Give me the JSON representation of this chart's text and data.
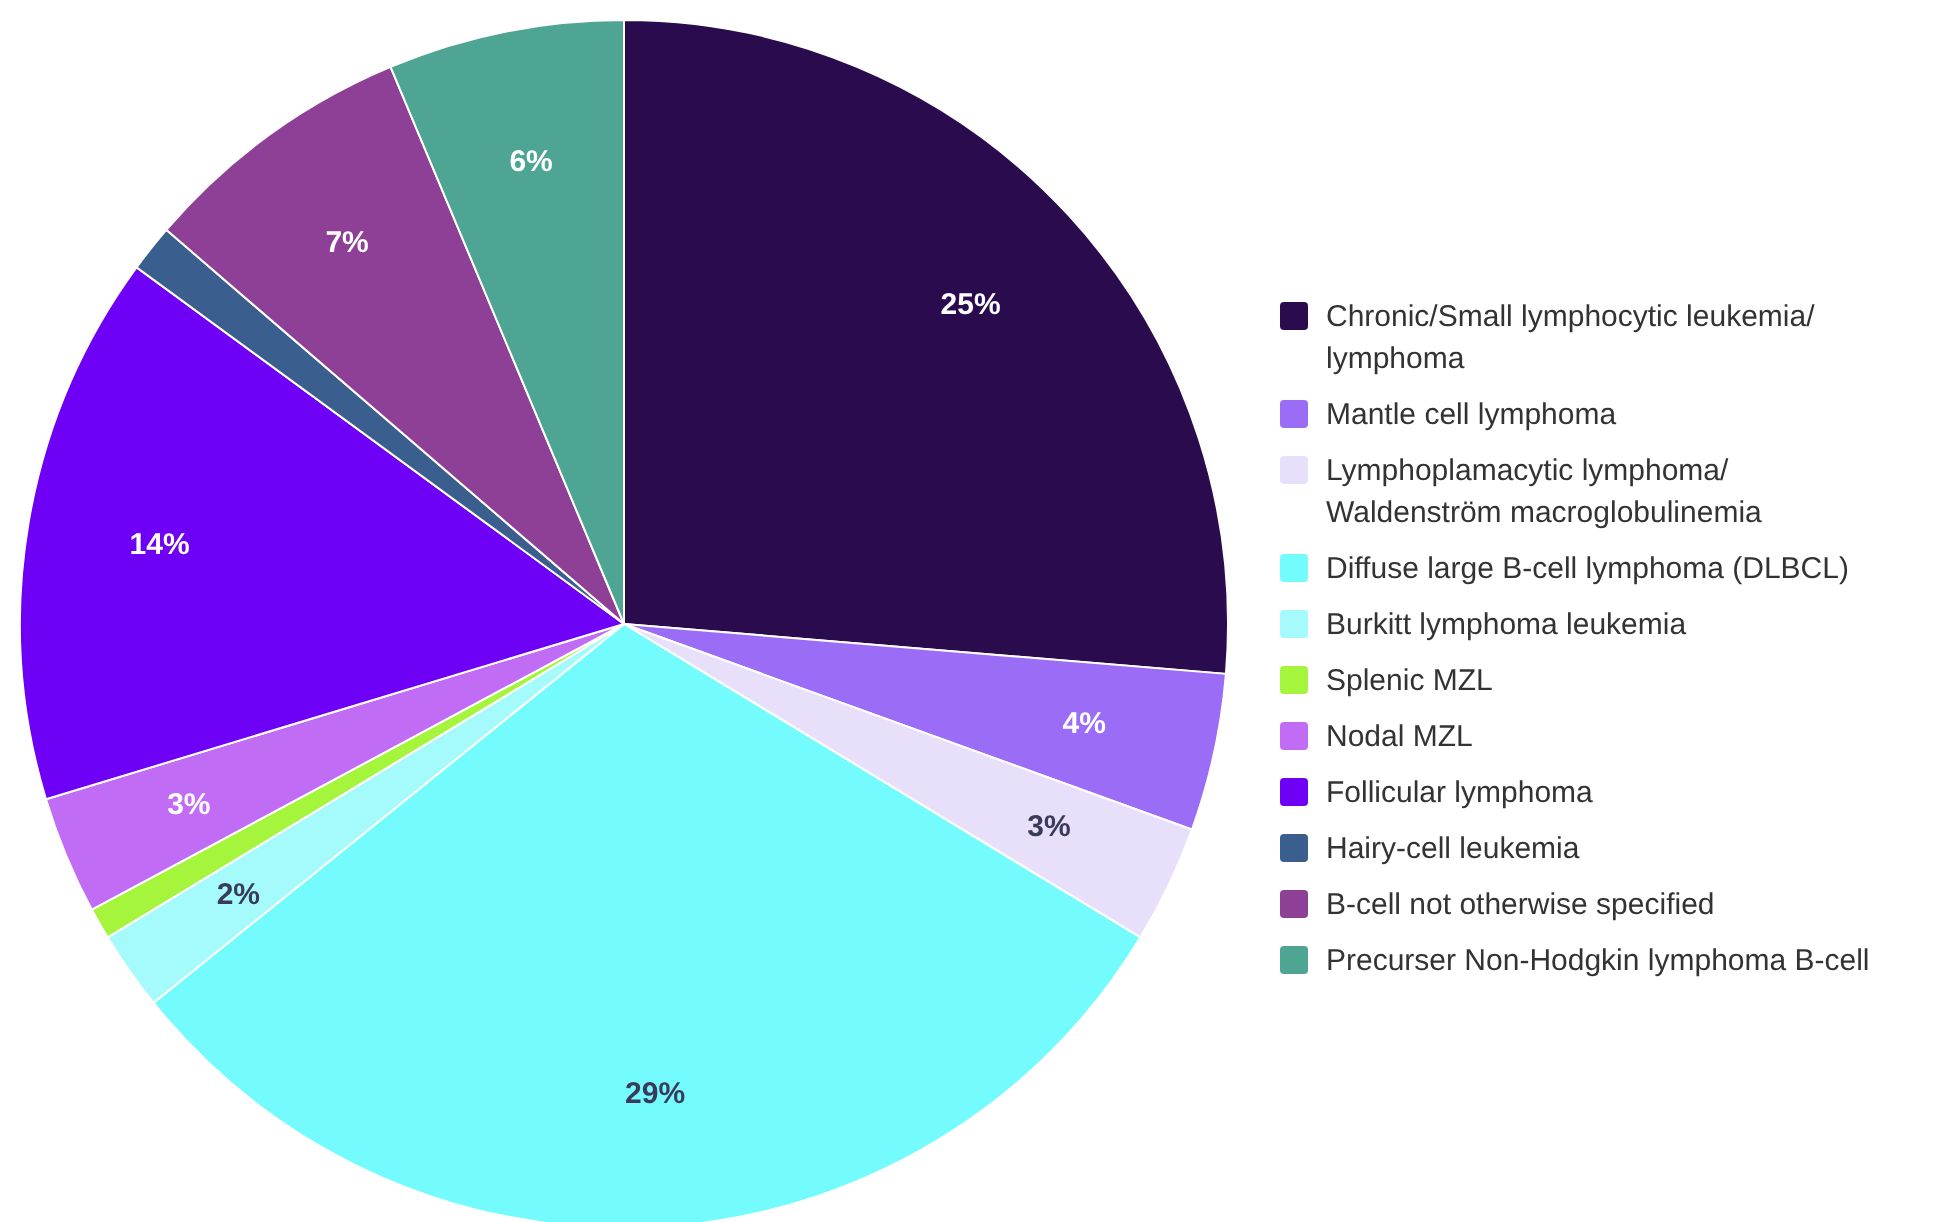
{
  "chart_data": {
    "type": "pie",
    "categories": [
      "Chronic/Small lymphocytic leukemia/ lymphoma",
      "Mantle cell lymphoma",
      "Lymphoplamacytic lymphoma/ Waldenström macroglobulinemia",
      "Diffuse large B-cell lymphoma (DLBCL)",
      "Burkitt lymphoma leukemia",
      "Splenic MZL",
      "Nodal MZL",
      "Follicular lymphoma",
      "Hairy-cell leukemia",
      "B-cell not otherwise specified",
      "Precurser Non-Hodgkin lymphoma B-cell"
    ],
    "values": [
      25,
      4,
      3,
      29,
      2,
      0.8,
      3,
      14,
      1.2,
      7,
      6
    ],
    "value_labels": [
      "25%",
      "4%",
      "3%",
      "29%",
      "2%",
      null,
      "3%",
      "14%",
      null,
      "7%",
      "6%"
    ],
    "colors": [
      "#2a0c4e",
      "#9b6cf5",
      "#e8e0fa",
      "#74fbfd",
      "#a5fbfb",
      "#a5f53c",
      "#c06cf5",
      "#6d00f5",
      "#3a5f8f",
      "#8e3f96",
      "#4fa593"
    ],
    "legend": "right"
  }
}
